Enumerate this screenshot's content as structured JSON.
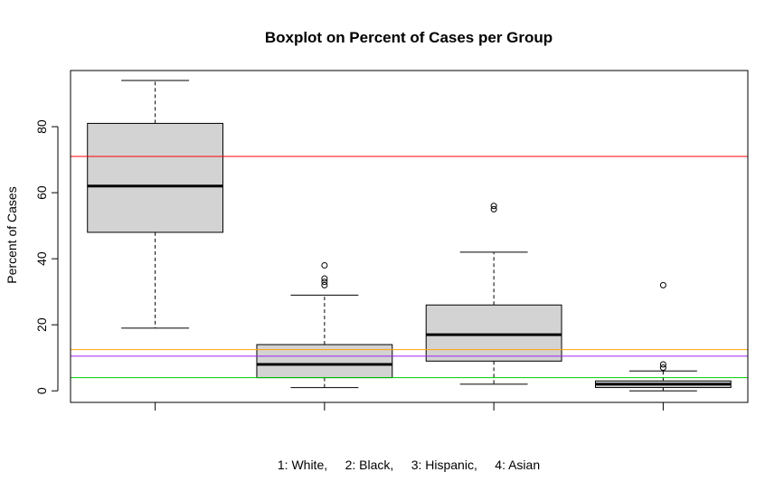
{
  "chart_data": {
    "type": "boxplot",
    "title": "Boxplot on Percent of Cases per Group",
    "xlabel": "1: White,     2: Black,     3: Hispanic,     4: Asian",
    "ylabel": "Percent of Cases",
    "ylim": [
      -3.5,
      97
    ],
    "yticks": [
      0,
      20,
      40,
      60,
      80
    ],
    "ytick_labels": [
      "0",
      "20",
      "40",
      "60",
      "80"
    ],
    "grid": false,
    "legend": "none",
    "box_fill": "#d3d3d3",
    "groups": [
      {
        "index": 1,
        "min": 19,
        "q1": 48,
        "median": 62,
        "q3": 81,
        "max": 94,
        "outliers": []
      },
      {
        "index": 2,
        "min": 1,
        "q1": 4,
        "median": 8,
        "q3": 14,
        "max": 29,
        "outliers": [
          32,
          33,
          34,
          38
        ]
      },
      {
        "index": 3,
        "min": 2,
        "q1": 9,
        "median": 17,
        "q3": 26,
        "max": 42,
        "outliers": [
          55,
          56
        ]
      },
      {
        "index": 4,
        "min": 0,
        "q1": 1,
        "median": 2,
        "q3": 3,
        "max": 6,
        "outliers": [
          7,
          8,
          32
        ]
      }
    ],
    "reference_lines": [
      {
        "y": 71,
        "color": "#ff0000"
      },
      {
        "y": 12.5,
        "color": "#ffa500"
      },
      {
        "y": 10.5,
        "color": "#a020f0"
      },
      {
        "y": 4,
        "color": "#00cd00"
      }
    ]
  }
}
